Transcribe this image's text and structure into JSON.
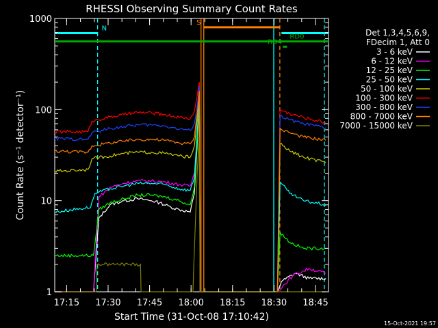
{
  "chart_data": {
    "type": "line",
    "title": "RHESSI Observing Summary Count Rates",
    "xlabel": "Start Time (31-Oct-08 17:10:42)",
    "ylabel": "Count Rate (s⁻¹ detector⁻¹)",
    "x_ticks": [
      "17:15",
      "17:30",
      "17:45",
      "18:00",
      "18:15",
      "18:30",
      "18:45"
    ],
    "x_tick_minutes": [
      4.3,
      19.3,
      34.3,
      49.3,
      64.3,
      79.3,
      94.3
    ],
    "xlim_minutes": [
      0,
      99
    ],
    "y_scale": "log",
    "ylim": [
      1,
      1000
    ],
    "y_ticks": [
      {
        "value": 1,
        "label": "1"
      },
      {
        "value": 10,
        "label": "10"
      },
      {
        "value": 100,
        "label": "100"
      },
      {
        "value": 1000,
        "label": "1000"
      }
    ],
    "legend_header": [
      "Det 1,3,4,5,6,9,",
      "FDecim 1, Att 0"
    ],
    "legend_placement": "right",
    "series": [
      {
        "name": "3 - 6 keV",
        "color": "#ffffff",
        "x": [
          0,
          14,
          16,
          20,
          25,
          30,
          35,
          38,
          42,
          45,
          49,
          50.5,
          51.5,
          52.3,
          52.6,
          80.5,
          82,
          87,
          92,
          98
        ],
        "y": [
          1,
          1,
          6.5,
          9,
          10,
          10.5,
          10,
          9.5,
          8.5,
          8,
          7.5,
          12,
          40,
          120,
          1,
          1,
          1.3,
          1.6,
          1.4,
          1.4
        ]
      },
      {
        "name": "6 - 12 keV",
        "color": "#ff00ff",
        "x": [
          0,
          14,
          16,
          20,
          25,
          30,
          35,
          40,
          45,
          49,
          50.5,
          51.5,
          52.3,
          52.6,
          80.5,
          86,
          92,
          98
        ],
        "y": [
          1,
          1,
          11,
          14,
          15.5,
          16.5,
          16.5,
          16,
          15,
          14.5,
          20,
          50,
          140,
          1,
          1,
          1.5,
          1.8,
          1.6
        ]
      },
      {
        "name": "12 - 25 keV",
        "color": "#00ff00",
        "x": [
          0,
          14,
          16,
          20,
          25,
          30,
          35,
          40,
          45,
          49,
          50.5,
          51.5,
          52.3,
          52.6,
          80.5,
          81.5,
          85,
          90,
          98
        ],
        "y": [
          2.5,
          2.5,
          8,
          9.5,
          10.5,
          11.5,
          11.5,
          11,
          10,
          9,
          14,
          45,
          130,
          1,
          1,
          4.5,
          3.5,
          3,
          3
        ]
      },
      {
        "name": "25 - 50 keV",
        "color": "#00ffff",
        "x": [
          0,
          13,
          14.5,
          20,
          25,
          30,
          35,
          40,
          45,
          49,
          50.5,
          51.5,
          52.3,
          52.6,
          80.5,
          81.5,
          85,
          90,
          98
        ],
        "y": [
          7.5,
          8.5,
          12,
          13.5,
          14.5,
          15.5,
          15.5,
          15,
          13.5,
          13,
          18,
          55,
          150,
          1,
          1,
          16,
          12,
          10,
          9
        ]
      },
      {
        "name": "50 - 100 keV",
        "color": "#cccc00",
        "x": [
          0,
          12,
          13.5,
          20,
          25,
          30,
          35,
          40,
          45,
          49,
          50.5,
          51.5,
          52.3,
          52.6,
          80.5,
          81.5,
          85,
          90,
          98
        ],
        "y": [
          21,
          22,
          29,
          31,
          33,
          34,
          34,
          33,
          31,
          30,
          40,
          80,
          170,
          1,
          1,
          42,
          35,
          30,
          26
        ]
      },
      {
        "name": "100 - 300 keV",
        "color": "#ff0000",
        "x": [
          0,
          12,
          13.5,
          20,
          25,
          30,
          35,
          40,
          45,
          49,
          50.5,
          51.5,
          52.3,
          52.6,
          80.5,
          81.5,
          85,
          90,
          98
        ],
        "y": [
          57,
          57,
          75,
          83,
          88,
          93,
          92,
          88,
          82,
          80,
          95,
          140,
          200,
          1,
          1,
          100,
          90,
          82,
          72
        ]
      },
      {
        "name": "300 - 800 keV",
        "color": "#2040ff",
        "x": [
          0,
          12,
          13.5,
          20,
          25,
          30,
          35,
          40,
          45,
          49,
          50.5,
          51.5,
          52.3,
          52.6,
          80.5,
          81.5,
          85,
          90,
          98
        ],
        "y": [
          48,
          47,
          56,
          62,
          65,
          68,
          68,
          66,
          61,
          59,
          70,
          110,
          180,
          1,
          1,
          85,
          77,
          70,
          63
        ]
      },
      {
        "name": "800 - 7000 keV",
        "color": "#ff8000",
        "x": [
          0,
          12,
          13.5,
          20,
          25,
          30,
          35,
          40,
          45,
          49,
          50.5,
          51.5,
          52.3,
          52.6,
          80.5,
          81.5,
          85,
          90,
          98
        ],
        "y": [
          35,
          34,
          40,
          43,
          45,
          47,
          47,
          46,
          43,
          42,
          50,
          90,
          160,
          1,
          1,
          62,
          56,
          50,
          46
        ]
      },
      {
        "name": "7000 - 15000 keV",
        "color": "#808000",
        "x": [
          0,
          15,
          15.3,
          31,
          31.2,
          50,
          50.3,
          51.5,
          52.2,
          52.6,
          80,
          98
        ],
        "y": [
          1,
          1,
          2,
          2,
          1,
          1,
          2,
          20,
          50,
          1,
          1,
          1
        ]
      }
    ],
    "vertical_markers": [
      {
        "x": 15.5,
        "color": "#00ffff",
        "style": "dashed"
      },
      {
        "x": 52.9,
        "color": "#ff8000",
        "style": "solid"
      },
      {
        "x": 53.9,
        "color": "#ff8000",
        "style": "solid"
      },
      {
        "x": 79.2,
        "color": "#00ffff",
        "style": "solid"
      },
      {
        "x": 81.4,
        "color": "#ff8000",
        "style": "dashed"
      },
      {
        "x": 97.5,
        "color": "#00ffff",
        "style": "dashed"
      }
    ],
    "flag_bars": [
      {
        "label": "N",
        "color": "#00ffff",
        "segments": [
          [
            0,
            15.5
          ],
          [
            82,
            99
          ]
        ],
        "level": 690,
        "label_x": 17
      },
      {
        "label": "S",
        "color": "#ff8000",
        "segments": [
          [
            53.9,
            81.4
          ]
        ],
        "level": 800,
        "label_x": 51.3
      },
      {
        "label": "RD0",
        "color": "#00aa00",
        "segments": [
          [
            0,
            99
          ]
        ],
        "level": 560,
        "label_x": 85
      },
      {
        "label": "RD4",
        "color": "#00aa00",
        "segments": [
          [
            82.5,
            84
          ]
        ],
        "level": 490,
        "label_x": 77
      }
    ],
    "footer_date": "15-Oct-2021 19:57"
  }
}
